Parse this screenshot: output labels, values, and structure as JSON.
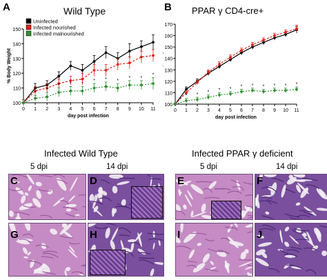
{
  "panels": {
    "A": "A",
    "B": "B",
    "C": "C",
    "D": "D",
    "E": "E",
    "F": "F",
    "G": "G",
    "H": "H",
    "I": "I",
    "J": "J"
  },
  "histology": {
    "wt_title": "Infected Wild Type",
    "ppar_title": "Infected PPAR γ deficient",
    "wt_5dpi": "5 dpi",
    "wt_14dpi": "14 dpi",
    "ppar_5dpi": "5 dpi",
    "ppar_14dpi": "14 dpi",
    "colors": {
      "tissue": "#c58bc4",
      "dark_tissue": "#7a4f9e",
      "lumen": "#f3eef3",
      "border": "#6b4c7a"
    }
  },
  "chart_data": [
    {
      "type": "line",
      "title": "Wild Type",
      "xlabel": "day post infection",
      "ylabel": "% Body Weight",
      "xlim": [
        0,
        11
      ],
      "ylim": [
        100,
        150
      ],
      "xticks": [
        "0",
        "1",
        "2",
        "3",
        "4",
        "5",
        "6",
        "7",
        "8",
        "9",
        "10",
        "11"
      ],
      "yticks": [
        "100",
        "110",
        "120",
        "130",
        "140",
        "150"
      ],
      "x": [
        0,
        1,
        2,
        3,
        4,
        5,
        6,
        7,
        8,
        9,
        10,
        11
      ],
      "legend_position": "top-left",
      "series": [
        {
          "name": "Uninfected",
          "color": "#000000",
          "values": [
            100,
            110,
            112,
            118,
            125,
            122,
            128,
            134,
            130,
            135,
            138,
            141
          ],
          "errors": [
            2,
            3,
            3,
            3,
            3,
            4,
            4,
            4,
            4,
            5,
            4,
            5
          ]
        },
        {
          "name": "Infected nourished",
          "color": "#e0201b",
          "values": [
            100,
            108,
            110,
            113,
            115,
            116,
            122,
            122,
            126,
            127,
            131,
            132
          ],
          "errors": [
            2,
            3,
            3,
            3,
            3,
            4,
            4,
            4,
            4,
            4,
            4,
            4
          ]
        },
        {
          "name": "Infected malnourished",
          "color": "#2f8f2f",
          "values": [
            100,
            103,
            104,
            107,
            108,
            108,
            110,
            111,
            110,
            112,
            112,
            113
          ],
          "errors": [
            2,
            2,
            3,
            3,
            3,
            3,
            3,
            3,
            3,
            3,
            3,
            4
          ]
        }
      ],
      "annotations": [
        "*",
        "*",
        "*",
        "*",
        "*",
        "*",
        "*",
        "*",
        "*",
        "*",
        "*"
      ]
    },
    {
      "type": "line",
      "title": "PPAR γ CD4-cre+",
      "xlabel": "day post infection",
      "ylabel": "% Body Weight",
      "xlim": [
        0,
        11
      ],
      "ylim": [
        100,
        170
      ],
      "xticks": [
        "0",
        "1",
        "2",
        "3",
        "4",
        "5",
        "6",
        "7",
        "8",
        "9",
        "10",
        "11"
      ],
      "yticks": [
        "100",
        "110",
        "120",
        "130",
        "140",
        "150",
        "160",
        "170"
      ],
      "x": [
        0,
        1,
        2,
        3,
        4,
        5,
        6,
        7,
        8,
        9,
        10,
        11
      ],
      "series": [
        {
          "color": "#000000",
          "values": [
            100,
            113,
            120,
            127,
            133,
            139,
            145,
            150,
            154,
            158,
            161,
            165
          ],
          "errors": [
            1,
            2,
            2,
            2,
            2,
            2,
            2,
            2,
            2,
            2,
            2,
            3
          ]
        },
        {
          "color": "#e0201b",
          "values": [
            100,
            110,
            119,
            128,
            135,
            141,
            147,
            152,
            156,
            160,
            163,
            166
          ],
          "errors": [
            1,
            2,
            2,
            2,
            2,
            2,
            2,
            2,
            2,
            2,
            2,
            3
          ]
        },
        {
          "color": "#2f8f2f",
          "values": [
            100,
            103,
            104,
            106,
            108,
            109,
            111,
            112,
            111,
            112,
            112,
            113
          ],
          "errors": [
            1,
            2,
            2,
            2,
            2,
            2,
            2,
            2,
            2,
            2,
            2,
            2
          ]
        }
      ],
      "annotations": [
        "*",
        "*",
        "*",
        "*",
        "*",
        "*",
        "*",
        "*",
        "*",
        "*",
        "*"
      ]
    }
  ]
}
